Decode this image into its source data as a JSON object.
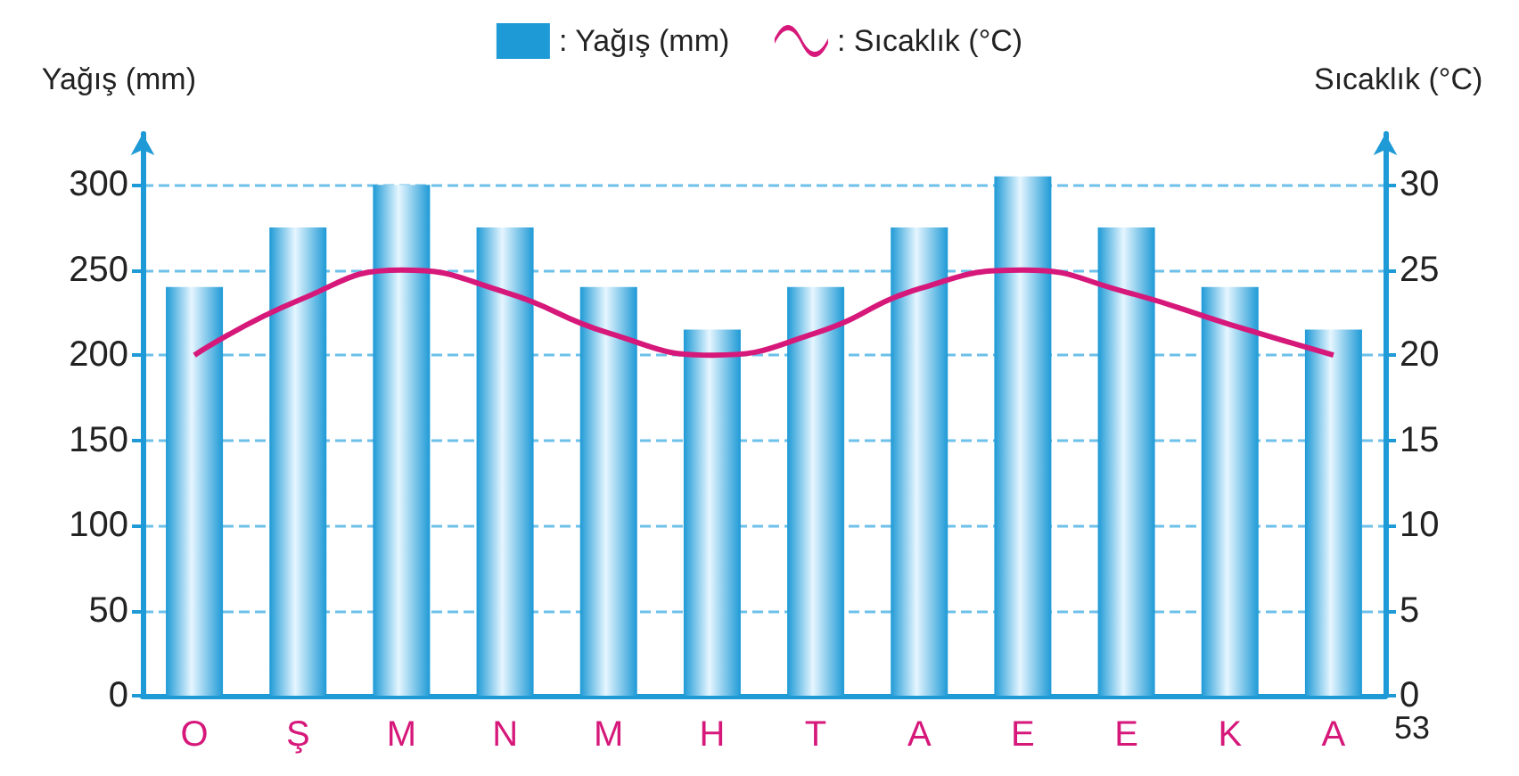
{
  "chart_data": {
    "type": "bar",
    "ylabel": "Yağış (mm)",
    "y2label": "Sıcaklık (°C)",
    "categories": [
      "O",
      "Ş",
      "M",
      "N",
      "M",
      "H",
      "T",
      "A",
      "E",
      "E",
      "K",
      "A"
    ],
    "series": [
      {
        "name": ": Yağış (mm)",
        "color": "#1e9ad6",
        "values": [
          240,
          275,
          300,
          275,
          240,
          215,
          240,
          275,
          305,
          275,
          240,
          215
        ]
      },
      {
        "name": ": Sıcaklık (°C)",
        "type": "line",
        "axis": "y2",
        "color": "#d6187a",
        "values": [
          20,
          23.2,
          25,
          23.7,
          21.3,
          20,
          21.3,
          23.9,
          25,
          23.7,
          21.8,
          20
        ]
      }
    ],
    "ylim": [
      0,
      330
    ],
    "yticks": [
      0,
      50,
      100,
      150,
      200,
      250,
      300
    ],
    "y2lim": [
      0,
      33
    ],
    "y2ticks": [
      0,
      5,
      10,
      15,
      20,
      25,
      30
    ],
    "grid": "y",
    "legend": "top",
    "marker": "none",
    "line_style": "solid",
    "annotations": [
      "53"
    ]
  }
}
